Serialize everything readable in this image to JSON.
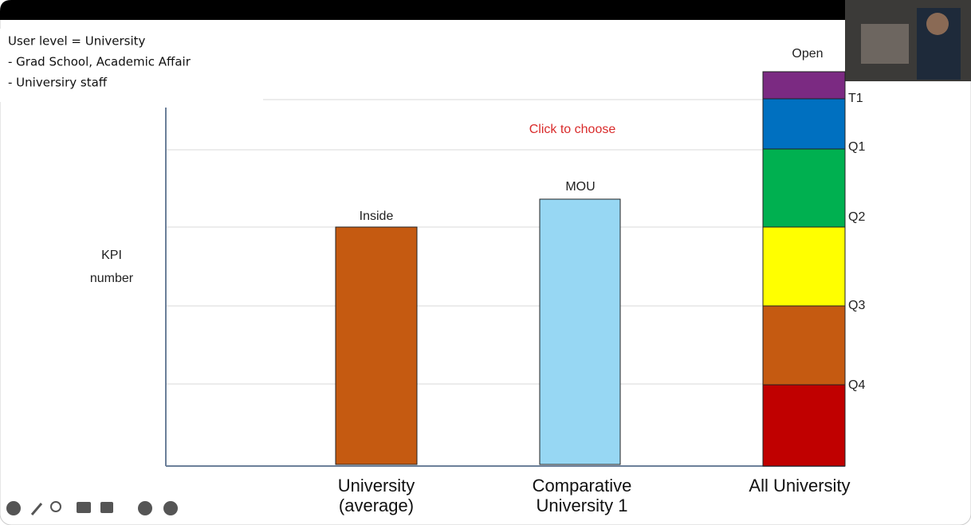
{
  "note_lines": [
    "User level = University",
    "- Grad School, Academic Affair",
    "- Universiry staff"
  ],
  "click_prompt": "Click to choose",
  "y_axis_label": [
    "KPI",
    "number"
  ],
  "bars": [
    {
      "label": "Inside",
      "category": [
        "University",
        "(average)"
      ]
    },
    {
      "label": "MOU",
      "category": [
        "Comparative",
        "University 1"
      ]
    }
  ],
  "stack": {
    "top_label": "Open",
    "category": "All University",
    "levels": [
      "T1",
      "Q1",
      "Q2",
      "Q3",
      "Q4"
    ]
  }
}
